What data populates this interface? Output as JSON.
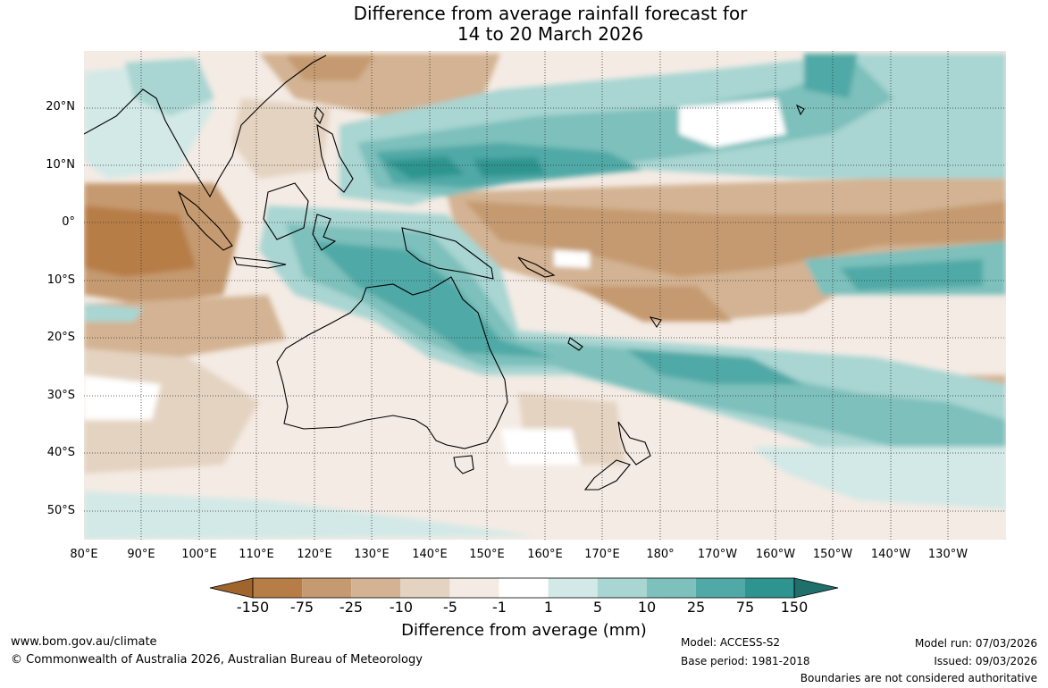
{
  "title": {
    "line1": "Difference from average rainfall forecast for",
    "line2": "14 to 20 March 2026"
  },
  "map": {
    "lat_labels": [
      "20°N",
      "10°N",
      "0°",
      "10°S",
      "20°S",
      "30°S",
      "40°S",
      "50°S"
    ],
    "lon_labels": [
      "80°E",
      "90°E",
      "100°E",
      "110°E",
      "120°E",
      "130°E",
      "140°E",
      "150°E",
      "160°E",
      "170°E",
      "180°",
      "170°W",
      "160°W",
      "150°W",
      "140°W",
      "130°W"
    ]
  },
  "colorbar": {
    "labels": [
      "-150",
      "-75",
      "-25",
      "-10",
      "-5",
      "-1",
      "1",
      "5",
      "10",
      "25",
      "75",
      "150"
    ],
    "colors": [
      "#a0652c",
      "#b77d47",
      "#c59a70",
      "#d3b393",
      "#e4d3c1",
      "#f4ebe4",
      "#ffffff",
      "#d3e9e7",
      "#a9d5d2",
      "#7dc0bc",
      "#50a9a6",
      "#2e948f",
      "#1f6f6b"
    ],
    "title": "Difference from average (mm)"
  },
  "footer": {
    "website": "www.bom.gov.au/climate",
    "copyright": "© Commonwealth of Australia 2026, Australian Bureau of Meteorology",
    "model": "Model: ACCESS-S2",
    "base_period": "Base period: 1981-2018",
    "model_run": "Model run: 07/03/2026",
    "issued": "Issued: 09/03/2026",
    "disclaimer": "Boundaries are not considered authoritative"
  }
}
